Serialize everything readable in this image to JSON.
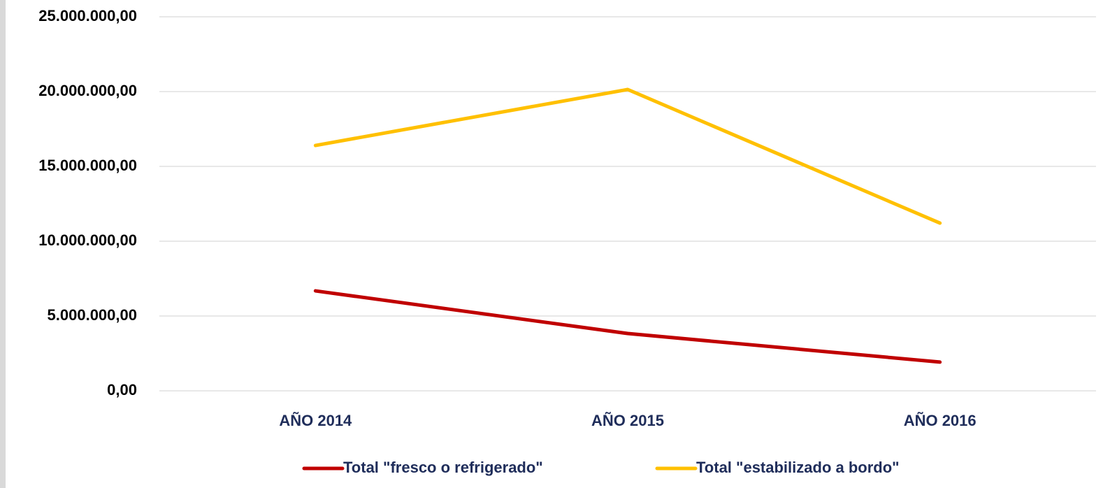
{
  "chart_data": {
    "type": "line",
    "categories": [
      "AÑO 2014",
      "AÑO 2015",
      "AÑO 2016"
    ],
    "series": [
      {
        "name": "Total \"fresco o refrigerado\"",
        "color": "#c00000",
        "values": [
          6680000,
          3830000,
          1920000
        ]
      },
      {
        "name": "Total \"estabilizado a bordo\"",
        "color": "#ffc000",
        "values": [
          16400000,
          20140000,
          11210000
        ]
      }
    ],
    "ylim": [
      0,
      25000000
    ],
    "yticks": [
      {
        "value": 0,
        "label": "0,00"
      },
      {
        "value": 5000000,
        "label": "5.000.000,00"
      },
      {
        "value": 10000000,
        "label": "10.000.000,00"
      },
      {
        "value": 15000000,
        "label": "15.000.000,00"
      },
      {
        "value": 20000000,
        "label": "20.000.000,00"
      },
      {
        "value": 25000000,
        "label": "25.000.000,00"
      }
    ],
    "grid": true,
    "legend": "bottom"
  }
}
